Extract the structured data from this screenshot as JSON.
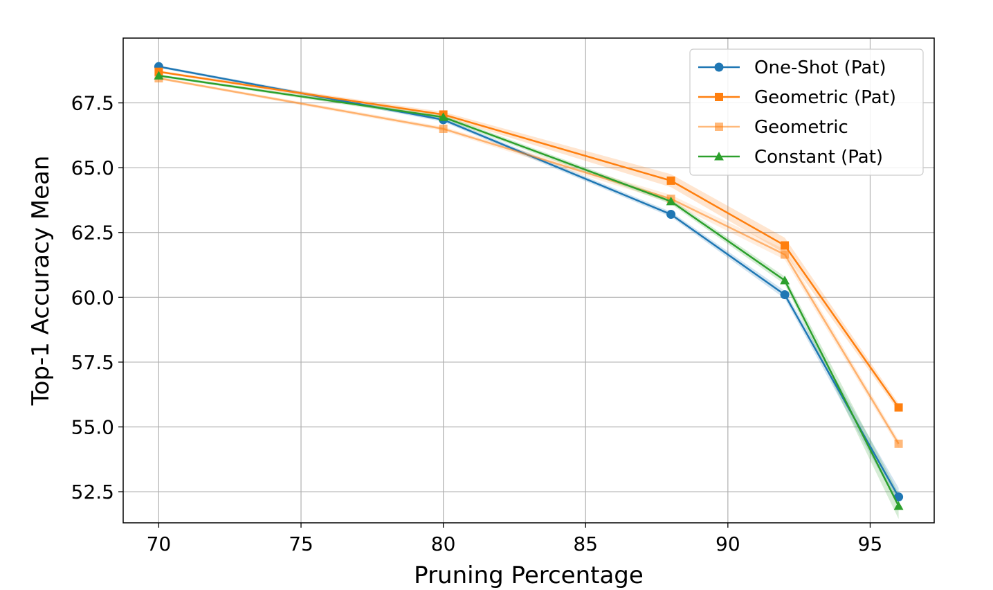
{
  "chart_data": {
    "type": "line",
    "title": "",
    "xlabel": "Pruning Percentage",
    "ylabel": "Top-1 Accuracy Mean",
    "xlim": [
      68.75,
      97.25
    ],
    "ylim": [
      51.3,
      70.0
    ],
    "xticks": [
      70,
      75,
      80,
      85,
      90,
      95
    ],
    "xtick_labels": [
      "70",
      "75",
      "80",
      "85",
      "90",
      "95"
    ],
    "yticks": [
      52.5,
      55.0,
      57.5,
      60.0,
      62.5,
      65.0,
      67.5
    ],
    "ytick_labels": [
      "52.5",
      "55.0",
      "57.5",
      "60.0",
      "62.5",
      "65.0",
      "67.5"
    ],
    "grid": true,
    "legend_position": "top-right",
    "x": [
      70,
      80,
      88,
      92,
      96
    ],
    "series": [
      {
        "name": "One-Shot (Pat)",
        "color": "#1f77b4",
        "opacity": 1.0,
        "marker": "circle",
        "values": [
          68.9,
          66.85,
          63.2,
          60.1,
          52.3
        ],
        "band": [
          0.05,
          0.08,
          0.1,
          0.15,
          0.35
        ]
      },
      {
        "name": "Geometric (Pat)",
        "color": "#ff7f0e",
        "opacity": 1.0,
        "marker": "square",
        "values": [
          68.7,
          67.05,
          64.5,
          62.0,
          55.75
        ],
        "band": [
          0.05,
          0.1,
          0.25,
          0.3,
          0.15
        ]
      },
      {
        "name": "Geometric",
        "color": "#ff7f0e",
        "opacity": 0.55,
        "marker": "square",
        "values": [
          68.45,
          66.5,
          63.8,
          61.65,
          54.35
        ],
        "band": [
          0.05,
          0.08,
          0.15,
          0.2,
          0.15
        ]
      },
      {
        "name": "Constant (Pat)",
        "color": "#2ca02c",
        "opacity": 1.0,
        "marker": "triangle",
        "values": [
          68.55,
          66.95,
          63.7,
          60.65,
          51.95
        ],
        "band": [
          0.05,
          0.08,
          0.1,
          0.15,
          0.5
        ]
      }
    ]
  }
}
